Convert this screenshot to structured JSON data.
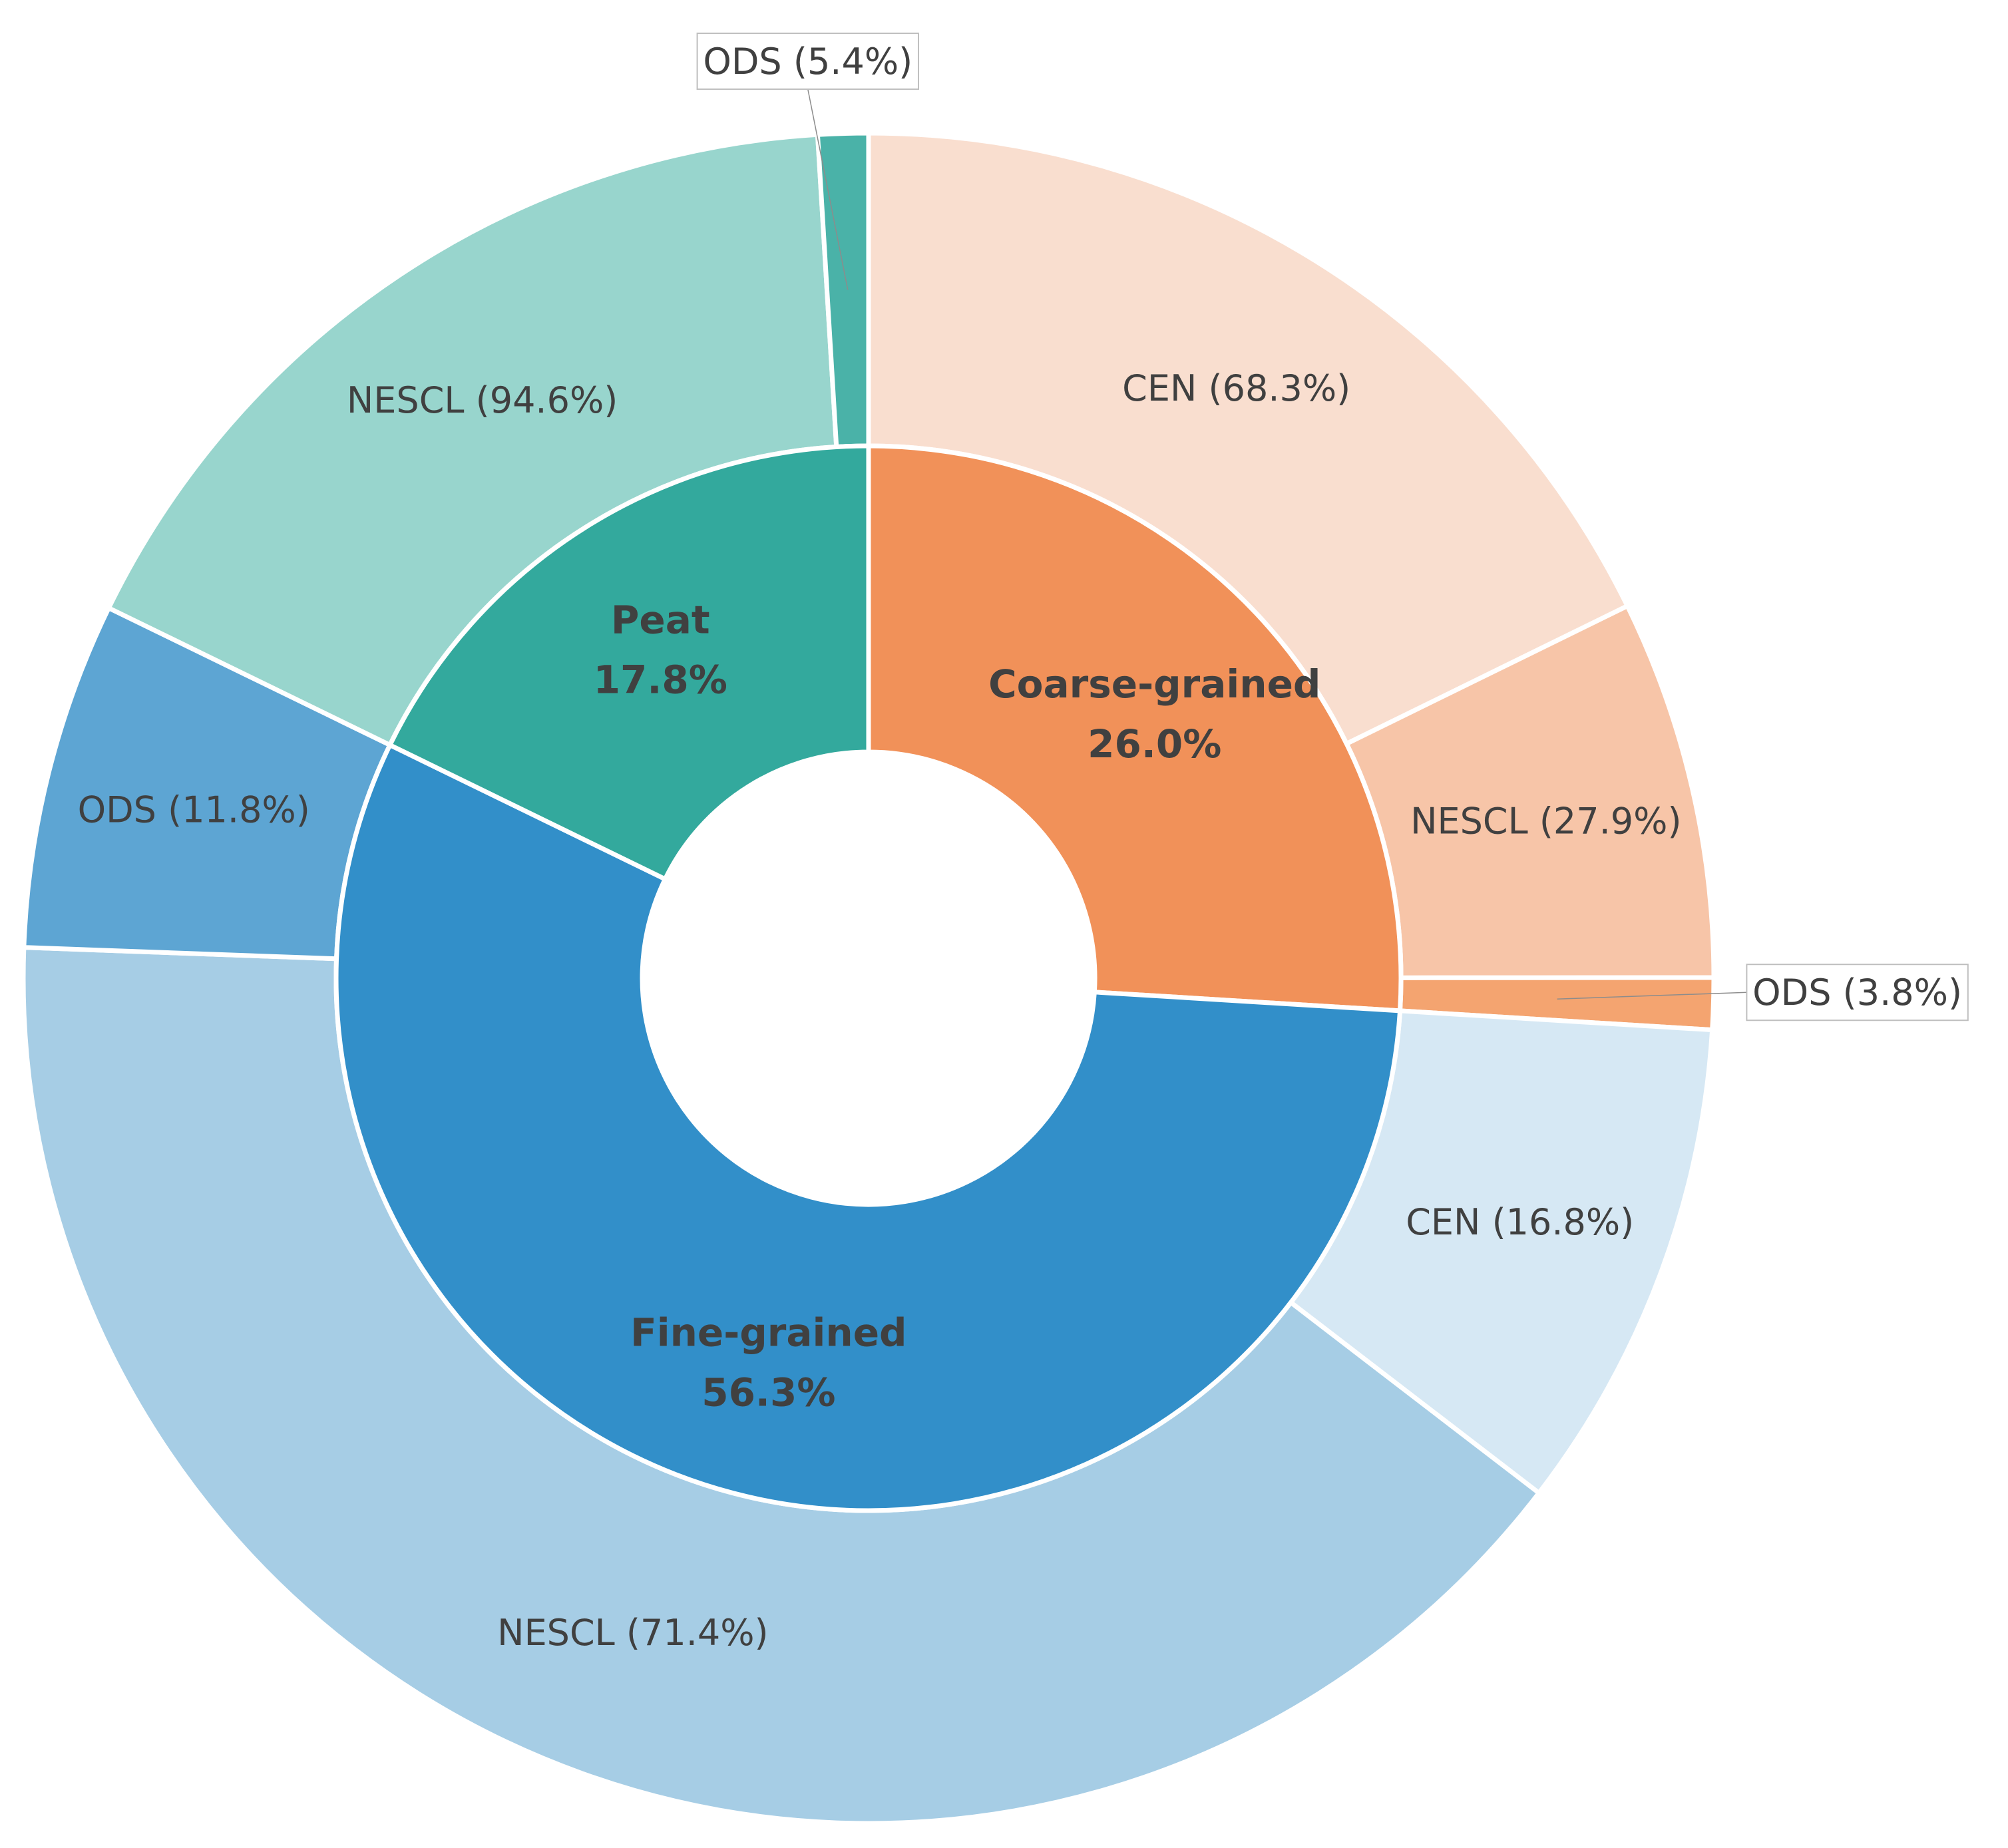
{
  "chart_data": {
    "type": "pie",
    "subtype": "nested-donut",
    "inner_ring": [
      {
        "name": "Coarse-grained",
        "value": 26.0,
        "label": "Coarse-grained",
        "value_label": "26.0%",
        "color": "#F19159"
      },
      {
        "name": "Fine-grained",
        "value": 56.3,
        "label": "Fine-grained",
        "value_label": "56.3%",
        "color": "#328FC9"
      },
      {
        "name": "Peat",
        "value": 17.8,
        "label": "Peat",
        "value_label": "17.8%",
        "color": "#33A99D"
      }
    ],
    "outer_ring": [
      {
        "parent": "Coarse-grained",
        "name": "CEN",
        "value": 68.3,
        "label": "CEN (68.3%)",
        "color": "#F9DECF"
      },
      {
        "parent": "Coarse-grained",
        "name": "NESCL",
        "value": 27.9,
        "label": "NESCL (27.9%)",
        "color": "#F7C5A8"
      },
      {
        "parent": "Coarse-grained",
        "name": "ODS",
        "value": 3.8,
        "label": "ODS (3.8%)",
        "color": "#F4A470",
        "callout": true
      },
      {
        "parent": "Fine-grained",
        "name": "CEN",
        "value": 16.8,
        "label": "CEN (16.8%)",
        "color": "#D6E8F4"
      },
      {
        "parent": "Fine-grained",
        "name": "NESCL",
        "value": 71.4,
        "label": "NESCL (71.4%)",
        "color": "#A6CDE5"
      },
      {
        "parent": "Fine-grained",
        "name": "ODS",
        "value": 11.8,
        "label": "ODS (11.8%)",
        "color": "#5DA5D3"
      },
      {
        "parent": "Peat",
        "name": "NESCL",
        "value": 94.6,
        "label": "NESCL (94.6%)",
        "color": "#98D5CD"
      },
      {
        "parent": "Peat",
        "name": "ODS",
        "value": 5.4,
        "label": "ODS (5.4%)",
        "color": "#4AB2A8",
        "callout": true
      }
    ],
    "legend": "none",
    "start_angle": "12 o'clock",
    "direction": "clockwise",
    "separator_color": "#ffffff"
  }
}
